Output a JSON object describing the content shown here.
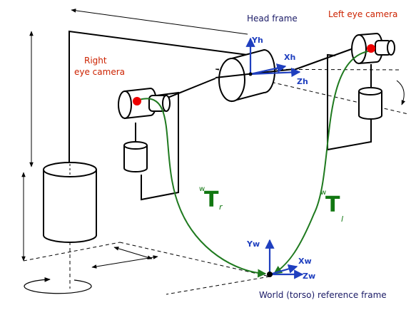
{
  "labels": {
    "head_frame": "Head frame",
    "left_eye_camera": "Left eye camera",
    "right_eye_camera_line1": "Right",
    "right_eye_camera_line2": "eye camera",
    "world_frame": "World (torso) reference frame"
  },
  "axes": {
    "head": {
      "x": "Xh",
      "y": "Yh",
      "z": "Zh"
    },
    "world": {
      "x": "Xw",
      "y": "Yw",
      "z": "Zw"
    }
  },
  "transforms": {
    "right": {
      "superscript": "w",
      "symbol": "T",
      "subscript": "r"
    },
    "left": {
      "superscript": "w",
      "symbol": "T",
      "subscript": "l"
    }
  },
  "colors": {
    "structure": "#000000",
    "axes": "#1f3fbf",
    "camera_center": "#ee0000",
    "transform_curve": "#1f7a1f",
    "label_navy": "#1a1a66",
    "label_red": "#cc2200"
  }
}
